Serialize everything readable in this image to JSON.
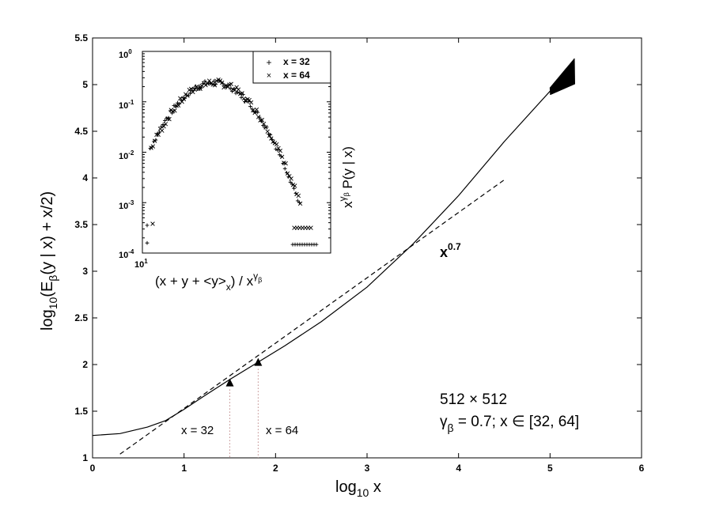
{
  "chart_data": [
    {
      "type": "line",
      "xlim": [
        0,
        6
      ],
      "ylim": [
        1,
        5.5
      ],
      "x_ticks": [
        "0",
        "1",
        "2",
        "3",
        "4",
        "5",
        "6"
      ],
      "y_ticks": [
        "1",
        "1.5",
        "2",
        "2.5",
        "3",
        "3.5",
        "4",
        "4.5",
        "5",
        "5.5"
      ],
      "series": [
        {
          "style": "solid",
          "x": [
            0,
            0.3,
            0.6,
            0.8,
            1.0,
            1.2,
            1.5,
            1.8,
            2.1,
            2.5,
            3.0,
            3.5,
            4.0,
            4.5,
            5.0,
            5.2
          ],
          "y": [
            1.24,
            1.26,
            1.33,
            1.4,
            1.52,
            1.65,
            1.84,
            2.02,
            2.2,
            2.46,
            2.83,
            3.29,
            3.81,
            4.39,
            4.93,
            5.09
          ]
        },
        {
          "style": "dashed",
          "x": [
            0.3,
            4.5
          ],
          "y": [
            1.04,
            3.98
          ]
        }
      ],
      "markers": [
        {
          "x": 1.5,
          "y": 1.8,
          "label": "x = 32"
        },
        {
          "x": 1.81,
          "y": 2.02,
          "label": "x = 64"
        }
      ],
      "annotations": {
        "power_law": "x",
        "power_law_exp": "0.7",
        "system_size": "512 × 512",
        "gamma_prefix": "γ",
        "gamma_sub": "β",
        "gamma_text": " = 0.7; x ∈ [32, 64]"
      },
      "xlabel": {
        "main": "log",
        "sub": "10",
        "rest": " x"
      },
      "ylabel": {
        "main": "log",
        "sub": "10",
        "a": "(E",
        "b": "β",
        "c": "(y | x) + x/2)"
      }
    },
    {
      "type": "scatter",
      "log_y": true,
      "log_x": true,
      "ylim_exp": [
        -4,
        0
      ],
      "y_ticks": [
        {
          "base": "10",
          "exp": "0"
        },
        {
          "base": "10",
          "exp": "-1"
        },
        {
          "base": "10",
          "exp": "-2"
        },
        {
          "base": "10",
          "exp": "-3"
        },
        {
          "base": "10",
          "exp": "-4"
        }
      ],
      "x_tick": {
        "base": "10",
        "exp": "1"
      },
      "legend": [
        {
          "marker": "+",
          "label": "x = 32"
        },
        {
          "marker": "×",
          "label": "x = 64"
        }
      ],
      "xlabel": "(x + y + <y>",
      "xlabel_sub": "x",
      "xlabel_tail": ") / x",
      "xlabel_sup": "γ",
      "xlabel_supsub": "β",
      "ylabel": "x",
      "ylabel_sup": "γ",
      "ylabel_supsub": "β",
      "ylabel_tail": " P(y | x)"
    }
  ]
}
